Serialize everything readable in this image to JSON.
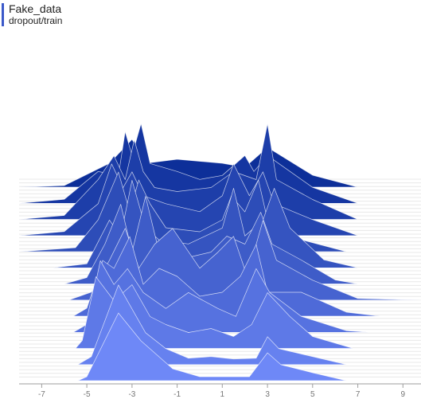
{
  "header": {
    "title": "Fake_data",
    "subtitle": "dropout/train"
  },
  "colors": {
    "title_bar": "#3b59c9",
    "back_series": "#0d2f99",
    "front_series": "#6e88f7",
    "axis": "#9e9e9e",
    "baseline": "#e8e8e8",
    "ridge_stroke": "#ffffff"
  },
  "chart_data": {
    "type": "area",
    "style": "tensorboard-histogram-offset",
    "x_axis": {
      "ticks": [
        "-7",
        "-5",
        "-3",
        "-1",
        "1",
        "3",
        "5",
        "7",
        "9"
      ],
      "range": [
        -8,
        9.8
      ]
    },
    "series_order": "back-to-front",
    "series": [
      {
        "points": [
          [
            -8,
            0
          ],
          [
            -6,
            0.02
          ],
          [
            -4,
            0.3
          ],
          [
            -3,
            0.6
          ],
          [
            -2.4,
            0.3
          ],
          [
            -1,
            0.35
          ],
          [
            1,
            0.3
          ],
          [
            2,
            0.25
          ],
          [
            3,
            0.5
          ],
          [
            5,
            0.15
          ],
          [
            7,
            0
          ]
        ]
      },
      {
        "points": [
          [
            -8,
            0
          ],
          [
            -6,
            0.05
          ],
          [
            -4.5,
            0.4
          ],
          [
            -3.6,
            0.35
          ],
          [
            -3.3,
            0.9
          ],
          [
            -3,
            0.6
          ],
          [
            -2.6,
            1.0
          ],
          [
            -2.2,
            0.5
          ],
          [
            -1,
            0.4
          ],
          [
            0,
            0.3
          ],
          [
            1,
            0.35
          ],
          [
            2,
            0.6
          ],
          [
            2.4,
            0.4
          ],
          [
            3,
            0.6
          ],
          [
            5,
            0.2
          ],
          [
            7,
            0
          ]
        ]
      },
      {
        "points": [
          [
            -8,
            0
          ],
          [
            -6,
            0.05
          ],
          [
            -4.5,
            0.5
          ],
          [
            -3.8,
            0.8
          ],
          [
            -3.3,
            0.5
          ],
          [
            -2.9,
            1.0
          ],
          [
            -2.5,
            0.6
          ],
          [
            -2,
            0.4
          ],
          [
            -1,
            0.35
          ],
          [
            0.5,
            0.4
          ],
          [
            1.5,
            0.6
          ],
          [
            2.5,
            0.5
          ],
          [
            3,
            1.2
          ],
          [
            3.4,
            0.5
          ],
          [
            5,
            0.25
          ],
          [
            7,
            0
          ]
        ]
      },
      {
        "points": [
          [
            -8,
            0
          ],
          [
            -6,
            0.05
          ],
          [
            -4.5,
            0.4
          ],
          [
            -3.9,
            0.9
          ],
          [
            -3.4,
            0.6
          ],
          [
            -3,
            0.8
          ],
          [
            -2.5,
            0.5
          ],
          [
            -1.5,
            0.4
          ],
          [
            0,
            0.3
          ],
          [
            1,
            0.5
          ],
          [
            1.5,
            0.9
          ],
          [
            2.2,
            0.5
          ],
          [
            2.8,
            0.8
          ],
          [
            3.3,
            0.4
          ],
          [
            5,
            0.2
          ],
          [
            7,
            0
          ]
        ]
      },
      {
        "points": [
          [
            -8,
            0
          ],
          [
            -5.5,
            0.05
          ],
          [
            -4.5,
            0.4
          ],
          [
            -3.6,
            1.0
          ],
          [
            -3.1,
            0.5
          ],
          [
            -2.7,
            0.9
          ],
          [
            -2.2,
            0.6
          ],
          [
            -1.5,
            0.3
          ],
          [
            0,
            0.25
          ],
          [
            1,
            0.4
          ],
          [
            1.4,
            0.7
          ],
          [
            2,
            0.5
          ],
          [
            2.6,
            0.9
          ],
          [
            3,
            0.4
          ],
          [
            4.5,
            0.15
          ],
          [
            6.5,
            0
          ]
        ]
      },
      {
        "points": [
          [
            -6.5,
            0
          ],
          [
            -5,
            0.05
          ],
          [
            -4,
            0.6
          ],
          [
            -3.5,
            0.4
          ],
          [
            -3,
            1.1
          ],
          [
            -2.4,
            0.5
          ],
          [
            -1.8,
            0.35
          ],
          [
            -0.5,
            0.3
          ],
          [
            1,
            0.5
          ],
          [
            1.5,
            1.0
          ],
          [
            2,
            0.4
          ],
          [
            2.8,
            0.6
          ],
          [
            3.3,
            1.0
          ],
          [
            4,
            0.5
          ],
          [
            5.5,
            0.1
          ],
          [
            7,
            0
          ]
        ]
      },
      {
        "points": [
          [
            -6,
            0
          ],
          [
            -5,
            0.08
          ],
          [
            -4.2,
            0.5
          ],
          [
            -3.5,
            1.0
          ],
          [
            -3,
            0.4
          ],
          [
            -2.4,
            1.1
          ],
          [
            -1.8,
            0.4
          ],
          [
            -1,
            0.3
          ],
          [
            0.5,
            0.4
          ],
          [
            1.2,
            0.6
          ],
          [
            2,
            0.5
          ],
          [
            2.7,
            0.9
          ],
          [
            3.2,
            0.5
          ],
          [
            4.5,
            0.3
          ],
          [
            6,
            0.05
          ],
          [
            7,
            0
          ]
        ]
      },
      {
        "points": [
          [
            -5.8,
            0
          ],
          [
            -4.8,
            0.1
          ],
          [
            -4,
            0.5
          ],
          [
            -3.3,
            0.9
          ],
          [
            -2.7,
            0.4
          ],
          [
            -2,
            0.7
          ],
          [
            -1.2,
            0.9
          ],
          [
            0,
            0.4
          ],
          [
            0.8,
            0.6
          ],
          [
            1.5,
            0.8
          ],
          [
            2.1,
            0.3
          ],
          [
            2.8,
            1.0
          ],
          [
            3.4,
            0.5
          ],
          [
            5,
            0.25
          ],
          [
            7,
            0.02
          ],
          [
            9.8,
            0
          ]
        ]
      },
      {
        "points": [
          [
            -5.6,
            0
          ],
          [
            -5,
            0.1
          ],
          [
            -4.3,
            0.7
          ],
          [
            -3.8,
            0.6
          ],
          [
            -3.1,
            1.0
          ],
          [
            -2.5,
            0.4
          ],
          [
            -1.8,
            0.6
          ],
          [
            -1,
            0.5
          ],
          [
            0,
            0.25
          ],
          [
            1,
            0.3
          ],
          [
            1.8,
            0.5
          ],
          [
            2.5,
            0.9
          ],
          [
            3,
            0.3
          ],
          [
            4.5,
            0.3
          ],
          [
            6.5,
            0.05
          ],
          [
            8,
            0
          ]
        ]
      },
      {
        "points": [
          [
            -5.6,
            0
          ],
          [
            -5,
            0.1
          ],
          [
            -4.4,
            0.9
          ],
          [
            -3.8,
            0.6
          ],
          [
            -3.2,
            0.8
          ],
          [
            -2.5,
            0.5
          ],
          [
            -1.5,
            0.3
          ],
          [
            -0.5,
            0.5
          ],
          [
            0.8,
            0.3
          ],
          [
            1.6,
            0.2
          ],
          [
            2.5,
            0.8
          ],
          [
            3.1,
            0.5
          ],
          [
            4.5,
            0.2
          ],
          [
            6.5,
            0.02
          ],
          [
            7.5,
            0
          ]
        ]
      },
      {
        "points": [
          [
            -5.5,
            0
          ],
          [
            -5.2,
            0.1
          ],
          [
            -4.6,
            0.9
          ],
          [
            -3.8,
            0.6
          ],
          [
            -3,
            0.8
          ],
          [
            -2.2,
            0.4
          ],
          [
            -1.5,
            0.3
          ],
          [
            -0.5,
            0.2
          ],
          [
            0.5,
            0.25
          ],
          [
            1.5,
            0.15
          ],
          [
            2.3,
            0.3
          ],
          [
            3,
            0.7
          ],
          [
            4,
            0.4
          ],
          [
            5,
            0.15
          ],
          [
            6.8,
            0
          ]
        ]
      },
      {
        "points": [
          [
            -5.4,
            0
          ],
          [
            -4.8,
            0.1
          ],
          [
            -3.6,
            1.0
          ],
          [
            -2.4,
            0.4
          ],
          [
            -1.5,
            0.2
          ],
          [
            -0.5,
            0.08
          ],
          [
            0.5,
            0.1
          ],
          [
            1.5,
            0.07
          ],
          [
            2.5,
            0.08
          ],
          [
            3,
            0.35
          ],
          [
            3.5,
            0.2
          ],
          [
            5,
            0.1
          ],
          [
            6.5,
            0
          ]
        ]
      },
      {
        "points": [
          [
            -5.4,
            0
          ],
          [
            -5,
            0.05
          ],
          [
            -3.6,
            0.85
          ],
          [
            -2.6,
            0.5
          ],
          [
            -1.2,
            0.15
          ],
          [
            0,
            0.05
          ],
          [
            1,
            0.05
          ],
          [
            2.2,
            0.05
          ],
          [
            3,
            0.35
          ],
          [
            3.6,
            0.2
          ],
          [
            5,
            0.1
          ],
          [
            6.5,
            0
          ]
        ]
      }
    ]
  }
}
